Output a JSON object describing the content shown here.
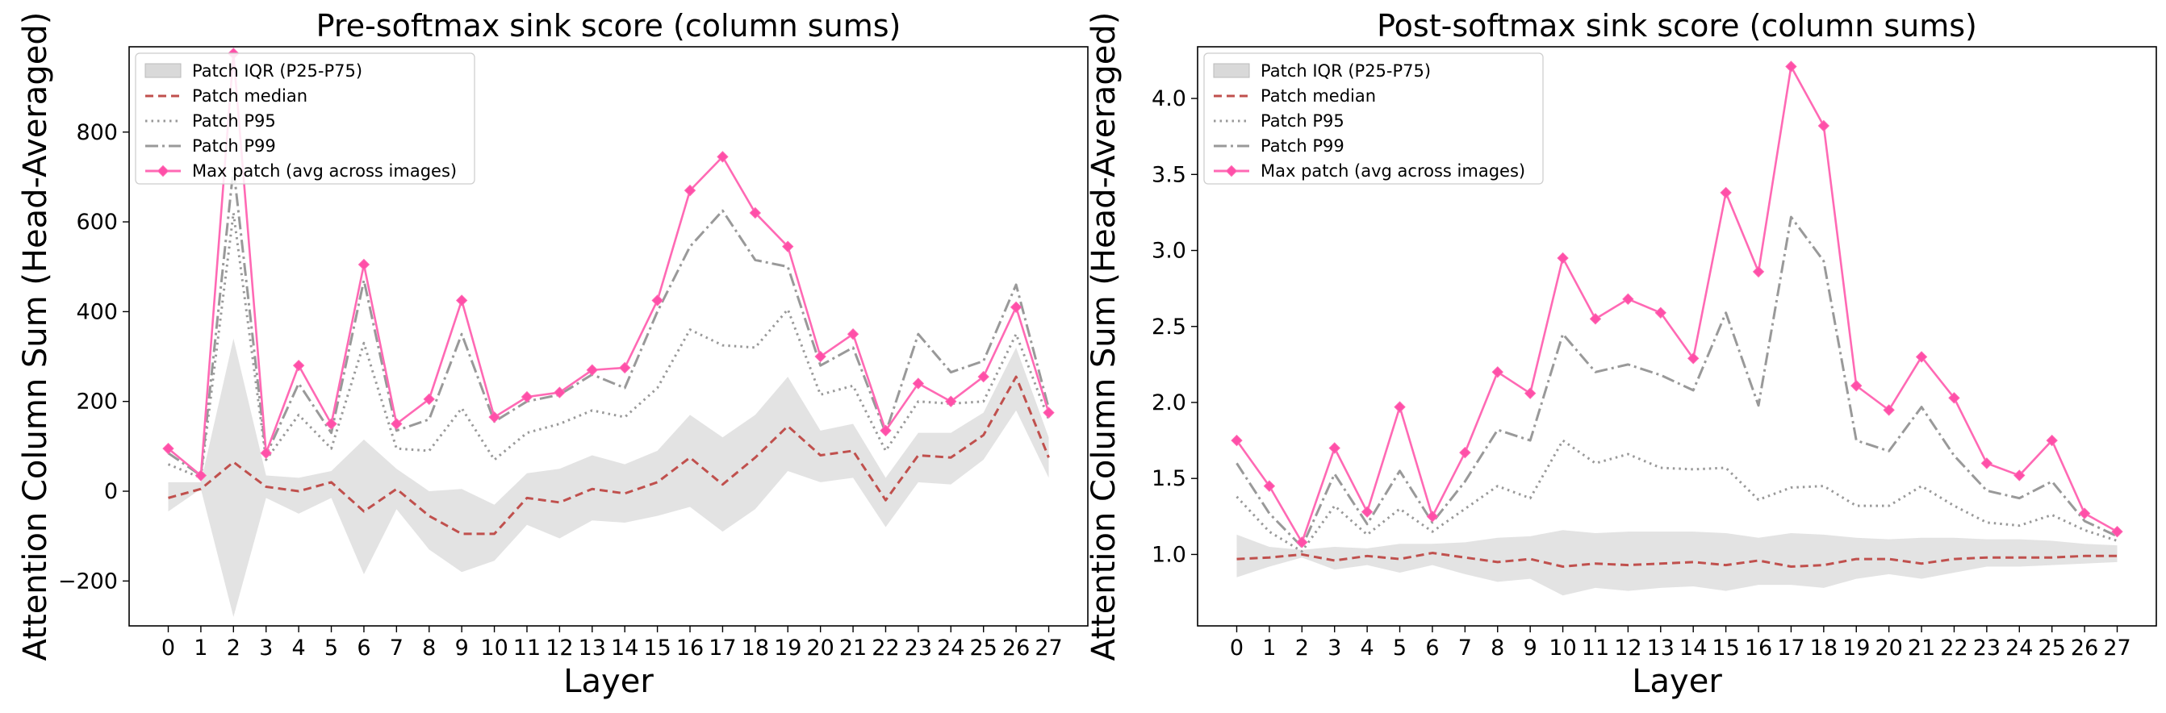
{
  "colors": {
    "iqr_fill": "#d9d9d9",
    "median": "#c0504d",
    "p95": "#999999",
    "p99": "#999999",
    "max": "#ff69b4",
    "max_marker": "#ff4fa8"
  },
  "chart_data": [
    {
      "type": "line",
      "title": "Pre-softmax sink score (column sums)",
      "xlabel": "Layer",
      "ylabel": "Attention Column Sum (Head-Averaged)",
      "x": [
        0,
        1,
        2,
        3,
        4,
        5,
        6,
        7,
        8,
        9,
        10,
        11,
        12,
        13,
        14,
        15,
        16,
        17,
        18,
        19,
        20,
        21,
        22,
        23,
        24,
        25,
        26,
        27
      ],
      "xlim": [
        -1.2,
        28.2
      ],
      "ylim": [
        -300,
        990
      ],
      "yticks": [
        -200,
        0,
        200,
        400,
        600,
        800
      ],
      "ytick_labels": [
        "−200",
        "0",
        "200",
        "400",
        "600",
        "800"
      ],
      "legend": [
        "Patch IQR (P25-P75)",
        "Patch median",
        "Patch P95",
        "Patch P99",
        "Max patch (avg across images)"
      ],
      "series": [
        {
          "name": "Patch IQR (P25-P75)",
          "kind": "band",
          "lower": [
            -45,
            5,
            -280,
            -15,
            -50,
            -15,
            -185,
            -40,
            -130,
            -180,
            -155,
            -75,
            -105,
            -65,
            -70,
            -55,
            -35,
            -90,
            -40,
            45,
            20,
            30,
            -80,
            20,
            15,
            70,
            180,
            30
          ],
          "upper": [
            20,
            20,
            340,
            35,
            30,
            45,
            115,
            50,
            0,
            5,
            -30,
            40,
            50,
            80,
            60,
            90,
            170,
            120,
            170,
            255,
            135,
            150,
            30,
            130,
            130,
            175,
            320,
            120
          ]
        },
        {
          "name": "Patch median",
          "kind": "line",
          "values": [
            -15,
            5,
            65,
            10,
            0,
            20,
            -45,
            5,
            -55,
            -95,
            -95,
            -15,
            -25,
            5,
            -5,
            20,
            75,
            15,
            75,
            145,
            80,
            90,
            -20,
            80,
            75,
            125,
            255,
            75
          ]
        },
        {
          "name": "Patch P95",
          "kind": "line",
          "values": [
            60,
            30,
            620,
            70,
            170,
            95,
            330,
            95,
            90,
            185,
            70,
            130,
            150,
            180,
            165,
            230,
            360,
            325,
            320,
            405,
            215,
            235,
            90,
            200,
            195,
            200,
            350,
            160
          ]
        },
        {
          "name": "Patch P99",
          "kind": "line",
          "values": [
            85,
            35,
            720,
            80,
            240,
            130,
            470,
            135,
            160,
            350,
            155,
            200,
            215,
            260,
            230,
            400,
            545,
            625,
            515,
            500,
            280,
            320,
            130,
            350,
            265,
            290,
            460,
            185
          ]
        },
        {
          "name": "Max patch (avg across images)",
          "kind": "line_marker",
          "values": [
            95,
            35,
            975,
            85,
            280,
            150,
            505,
            150,
            205,
            425,
            165,
            210,
            220,
            270,
            275,
            425,
            670,
            745,
            620,
            545,
            300,
            350,
            135,
            240,
            200,
            255,
            410,
            175
          ]
        }
      ]
    },
    {
      "type": "line",
      "title": "Post-softmax sink score (column sums)",
      "xlabel": "Layer",
      "ylabel": "Attention Column Sum (Head-Averaged)",
      "x": [
        0,
        1,
        2,
        3,
        4,
        5,
        6,
        7,
        8,
        9,
        10,
        11,
        12,
        13,
        14,
        15,
        16,
        17,
        18,
        19,
        20,
        21,
        22,
        23,
        24,
        25,
        26,
        27
      ],
      "xlim": [
        -1.2,
        28.2
      ],
      "ylim": [
        0.53,
        4.34
      ],
      "yticks": [
        1.0,
        1.5,
        2.0,
        2.5,
        3.0,
        3.5,
        4.0
      ],
      "ytick_labels": [
        "1.0",
        "1.5",
        "2.0",
        "2.5",
        "3.0",
        "3.5",
        "4.0"
      ],
      "legend": [
        "Patch IQR (P25-P75)",
        "Patch median",
        "Patch P95",
        "Patch P99",
        "Max patch (avg across images)"
      ],
      "series": [
        {
          "name": "Patch IQR (P25-P75)",
          "kind": "band",
          "lower": [
            0.85,
            0.92,
            0.98,
            0.9,
            0.93,
            0.88,
            0.93,
            0.87,
            0.82,
            0.84,
            0.73,
            0.78,
            0.76,
            0.78,
            0.79,
            0.76,
            0.8,
            0.8,
            0.78,
            0.84,
            0.87,
            0.84,
            0.88,
            0.92,
            0.92,
            0.93,
            0.94,
            0.95
          ],
          "upper": [
            1.13,
            1.05,
            1.03,
            1.05,
            1.04,
            1.07,
            1.07,
            1.08,
            1.11,
            1.12,
            1.16,
            1.14,
            1.15,
            1.15,
            1.15,
            1.14,
            1.11,
            1.14,
            1.13,
            1.11,
            1.1,
            1.11,
            1.11,
            1.1,
            1.1,
            1.09,
            1.07,
            1.06
          ]
        },
        {
          "name": "Patch median",
          "kind": "line",
          "values": [
            0.97,
            0.98,
            1.0,
            0.96,
            0.99,
            0.97,
            1.01,
            0.98,
            0.95,
            0.97,
            0.92,
            0.94,
            0.93,
            0.94,
            0.95,
            0.93,
            0.96,
            0.92,
            0.93,
            0.97,
            0.97,
            0.94,
            0.97,
            0.98,
            0.98,
            0.98,
            0.99,
            0.99
          ]
        },
        {
          "name": "Patch P95",
          "kind": "line",
          "values": [
            1.38,
            1.15,
            1.02,
            1.32,
            1.13,
            1.3,
            1.15,
            1.3,
            1.45,
            1.37,
            1.75,
            1.6,
            1.66,
            1.57,
            1.56,
            1.57,
            1.36,
            1.44,
            1.45,
            1.32,
            1.32,
            1.45,
            1.32,
            1.21,
            1.19,
            1.26,
            1.16,
            1.09
          ]
        },
        {
          "name": "Patch P99",
          "kind": "line",
          "values": [
            1.6,
            1.27,
            1.05,
            1.53,
            1.2,
            1.55,
            1.21,
            1.48,
            1.82,
            1.75,
            2.45,
            2.2,
            2.25,
            2.18,
            2.08,
            2.59,
            1.98,
            3.22,
            2.93,
            1.75,
            1.68,
            1.97,
            1.65,
            1.42,
            1.37,
            1.48,
            1.22,
            1.12
          ]
        },
        {
          "name": "Max patch (avg across images)",
          "kind": "line_marker",
          "values": [
            1.75,
            1.45,
            1.08,
            1.7,
            1.28,
            1.97,
            1.25,
            1.67,
            2.2,
            2.06,
            2.95,
            2.55,
            2.68,
            2.59,
            2.29,
            3.38,
            2.86,
            4.21,
            3.82,
            2.11,
            1.95,
            2.3,
            2.03,
            1.6,
            1.52,
            1.75,
            1.27,
            1.15
          ]
        }
      ]
    }
  ]
}
